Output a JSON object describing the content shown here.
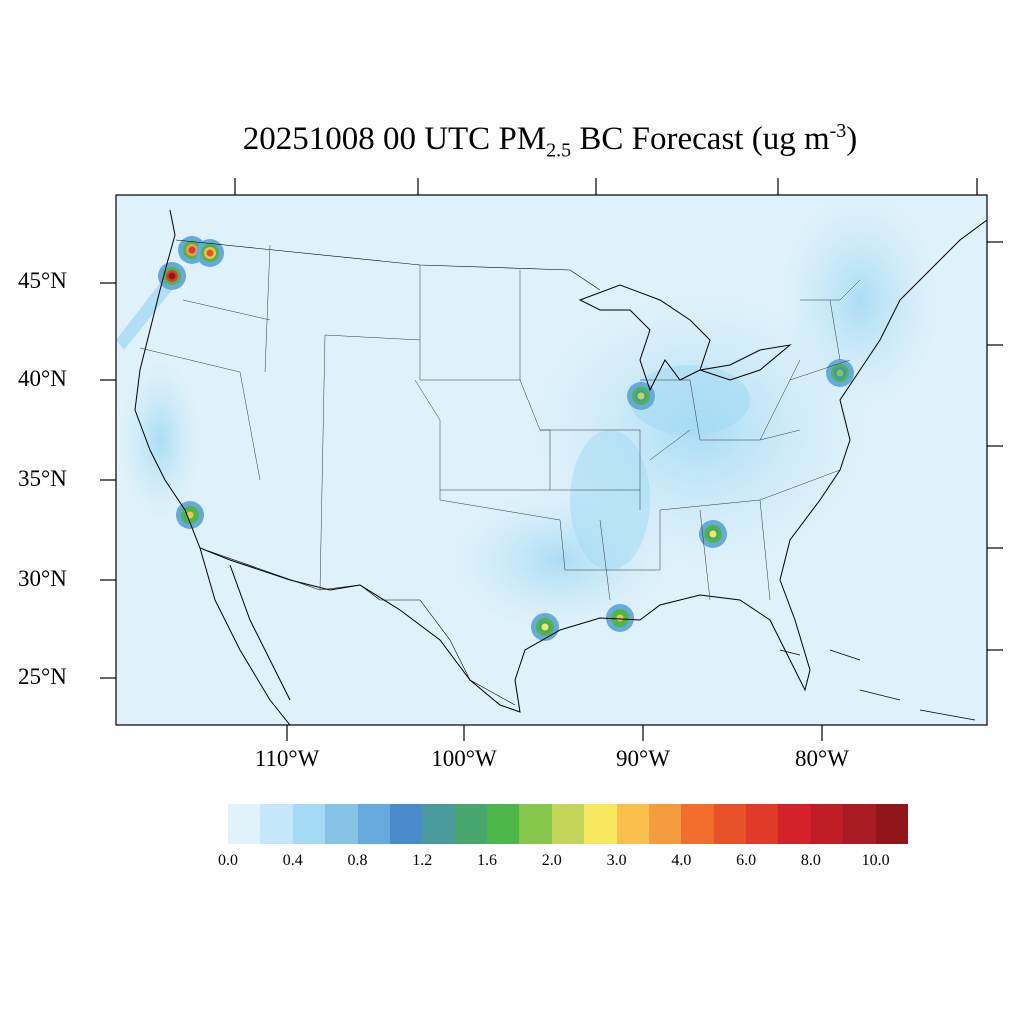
{
  "title": {
    "date_time": "20251008 00 UTC PM",
    "subscript": "2.5",
    "mid": " BC Forecast (ug m",
    "superscript": "-3",
    "end": ")"
  },
  "map": {
    "lat_labels": [
      "45°N",
      "40°N",
      "35°N",
      "30°N",
      "25°N"
    ],
    "lon_labels": [
      "110°W",
      "100°W",
      "90°W",
      "80°W"
    ],
    "background_color": "#dff1fa",
    "hotspots": [
      {
        "name": "oregon-fire",
        "level": 10.0
      },
      {
        "name": "washington-fire",
        "level": 6.0
      },
      {
        "name": "idaho-fire",
        "level": 5.0
      },
      {
        "name": "los-angeles",
        "level": 3.0
      },
      {
        "name": "chicago",
        "level": 2.0
      },
      {
        "name": "atlanta",
        "level": 2.5
      },
      {
        "name": "new-orleans",
        "level": 3.0
      },
      {
        "name": "houston",
        "level": 2.5
      },
      {
        "name": "new-york",
        "level": 1.8
      }
    ]
  },
  "colorbar": {
    "colors": [
      "#e0f3fb",
      "#c4e8f8",
      "#a4daf4",
      "#86c2e6",
      "#66a9dc",
      "#4a8bcb",
      "#4a9a9e",
      "#48a56c",
      "#4cb748",
      "#86c74b",
      "#c4d65a",
      "#f7e75f",
      "#f8bf4c",
      "#f59c3e",
      "#f26d2c",
      "#e8522a",
      "#df3a27",
      "#d32229",
      "#be1d26",
      "#a91b22",
      "#91161c"
    ],
    "labels": [
      "0.0",
      "0.4",
      "0.8",
      "1.2",
      "1.6",
      "2.0",
      "3.0",
      "4.0",
      "6.0",
      "8.0",
      "10.0"
    ]
  }
}
